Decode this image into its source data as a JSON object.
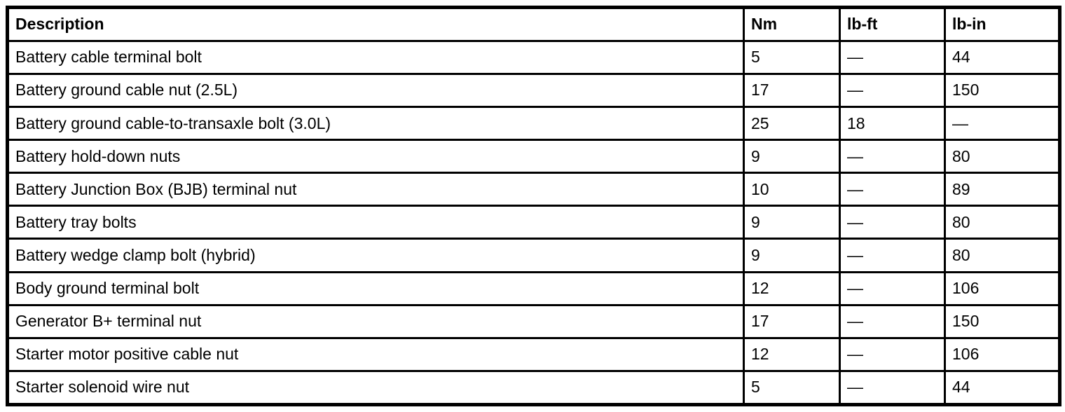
{
  "colors": {
    "background": "#ffffff",
    "border": "#000000",
    "text": "#000000"
  },
  "table": {
    "columns": [
      "Description",
      "Nm",
      "lb-ft",
      "lb-in"
    ],
    "rows": [
      [
        "Battery cable terminal bolt",
        "5",
        "—",
        "44"
      ],
      [
        "Battery ground cable nut (2.5L)",
        "17",
        "—",
        "150"
      ],
      [
        "Battery ground cable-to-transaxle bolt (3.0L)",
        "25",
        "18",
        "—"
      ],
      [
        "Battery hold-down nuts",
        "9",
        "—",
        "80"
      ],
      [
        "Battery Junction Box (BJB) terminal nut",
        "10",
        "—",
        "89"
      ],
      [
        "Battery tray bolts",
        "9",
        "—",
        "80"
      ],
      [
        "Battery wedge clamp bolt (hybrid)",
        "9",
        "—",
        "80"
      ],
      [
        "Body ground terminal bolt",
        "12",
        "—",
        "106"
      ],
      [
        "Generator B+ terminal nut",
        "17",
        "—",
        "150"
      ],
      [
        "Starter motor positive cable nut",
        "12",
        "—",
        "106"
      ],
      [
        "Starter solenoid wire nut",
        "5",
        "—",
        "44"
      ]
    ]
  }
}
